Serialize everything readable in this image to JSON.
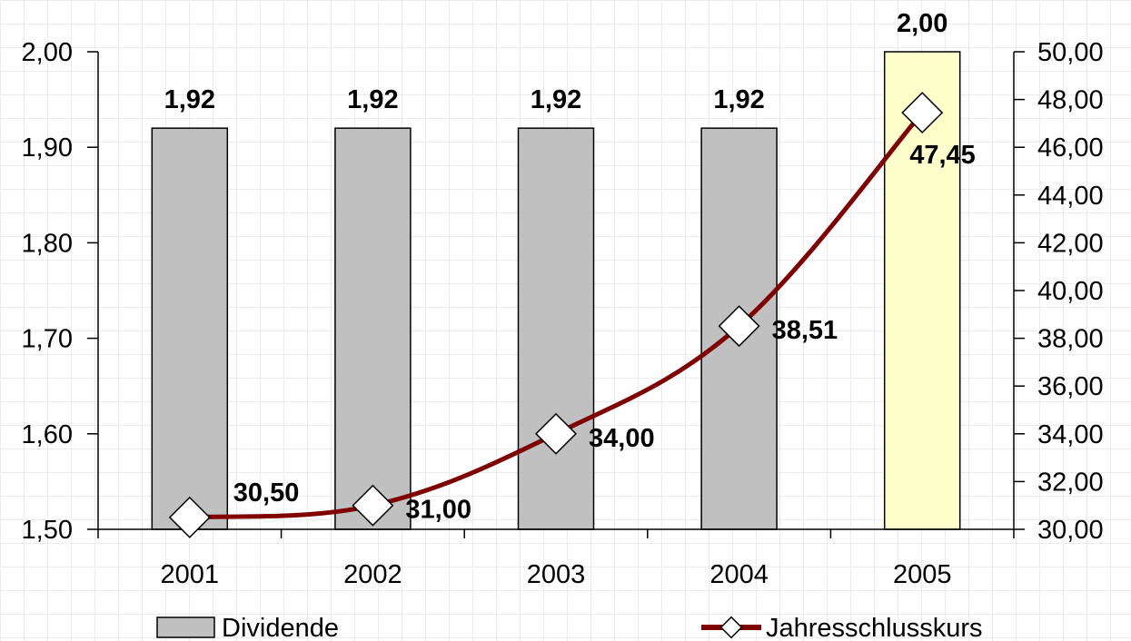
{
  "chart_data": {
    "type": "bar",
    "categories": [
      "2001",
      "2002",
      "2003",
      "2004",
      "2005"
    ],
    "series": [
      {
        "name": "Dividende",
        "kind": "bar",
        "axis": "left",
        "values": [
          1.92,
          1.92,
          1.92,
          1.92,
          2.0
        ],
        "value_labels": [
          "1,92",
          "1,92",
          "1,92",
          "1,92",
          "2,00"
        ],
        "bar_colors": [
          "#c0c0c0",
          "#c0c0c0",
          "#c0c0c0",
          "#c0c0c0",
          "#ffffcc"
        ]
      },
      {
        "name": "Jahresschlusskurs",
        "kind": "line",
        "axis": "right",
        "values": [
          30.5,
          31.0,
          34.0,
          38.51,
          47.45
        ],
        "value_labels": [
          "30,50",
          "31,00",
          "34,00",
          "38,51",
          "47,45"
        ],
        "color": "#800000",
        "marker": "diamond"
      }
    ],
    "y_left": {
      "range": [
        1.5,
        2.0
      ],
      "ticks": [
        1.5,
        1.6,
        1.7,
        1.8,
        1.9,
        2.0
      ],
      "tick_labels": [
        "1,50",
        "1,60",
        "1,70",
        "1,80",
        "1,90",
        "2,00"
      ]
    },
    "y_right": {
      "range": [
        30,
        50
      ],
      "ticks": [
        30,
        32,
        34,
        36,
        38,
        40,
        42,
        44,
        46,
        48,
        50
      ],
      "tick_labels": [
        "30,00",
        "32,00",
        "34,00",
        "36,00",
        "38,00",
        "40,00",
        "42,00",
        "44,00",
        "46,00",
        "48,00",
        "50,00"
      ]
    },
    "title": "",
    "xlabel": "",
    "ylabel": "",
    "legend_position": "bottom",
    "grid": true
  }
}
